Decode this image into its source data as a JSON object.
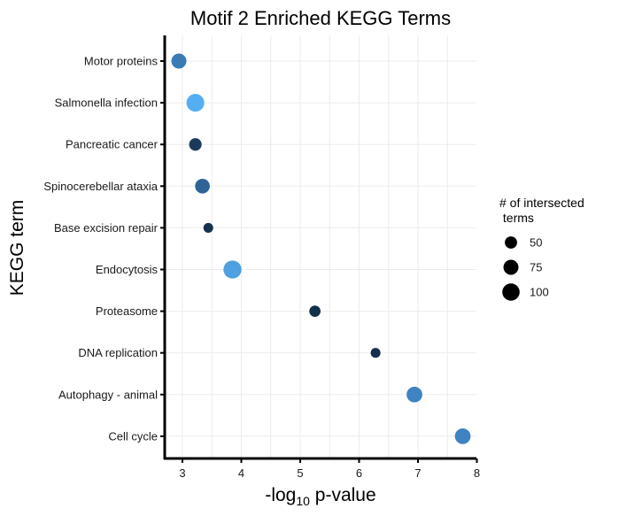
{
  "chart_data": {
    "type": "scatter",
    "title": "Motif 2 Enriched KEGG Terms",
    "xlabel_main": "-log",
    "xlabel_sub": "10",
    "xlabel_rest": " p-value",
    "ylabel": "KEGG term",
    "xlim": [
      2.7,
      8
    ],
    "xticks": [
      3,
      4,
      5,
      6,
      7,
      8
    ],
    "categories": [
      "Motor proteins",
      "Salmonella infection",
      "Pancreatic cancer",
      "Spinocerebellar ataxia",
      "Base excision repair",
      "Endocytosis",
      "Proteasome",
      "DNA replication",
      "Autophagy - animal",
      "Cell cycle"
    ],
    "points": [
      {
        "term": "Motor proteins",
        "x": 2.94,
        "size": 75,
        "color": "#3a7ab5"
      },
      {
        "term": "Salmonella infection",
        "x": 3.22,
        "size": 105,
        "color": "#56aef2"
      },
      {
        "term": "Pancreatic cancer",
        "x": 3.22,
        "size": 52,
        "color": "#1c3b5a"
      },
      {
        "term": "Spinocerebellar ataxia",
        "x": 3.34,
        "size": 72,
        "color": "#2e6396"
      },
      {
        "term": "Base excision repair",
        "x": 3.44,
        "size": 32,
        "color": "#15324f"
      },
      {
        "term": "Endocytosis",
        "x": 3.85,
        "size": 108,
        "color": "#4ea0e0"
      },
      {
        "term": "Proteasome",
        "x": 5.25,
        "size": 42,
        "color": "#14314c"
      },
      {
        "term": "DNA replication",
        "x": 6.28,
        "size": 32,
        "color": "#132f4a"
      },
      {
        "term": "Autophagy - animal",
        "x": 6.94,
        "size": 82,
        "color": "#3f83c2"
      },
      {
        "term": "Cell cycle",
        "x": 7.76,
        "size": 82,
        "color": "#3f83c2"
      }
    ],
    "legend": {
      "title_line1": "# of intersected",
      "title_line2": " terms",
      "entries": [
        {
          "label": "50",
          "size": 50,
          "color": "#000000"
        },
        {
          "label": "75",
          "size": 75,
          "color": "#000000"
        },
        {
          "label": "100",
          "size": 100,
          "color": "#000000"
        }
      ],
      "placement": "right"
    },
    "grid": true
  }
}
